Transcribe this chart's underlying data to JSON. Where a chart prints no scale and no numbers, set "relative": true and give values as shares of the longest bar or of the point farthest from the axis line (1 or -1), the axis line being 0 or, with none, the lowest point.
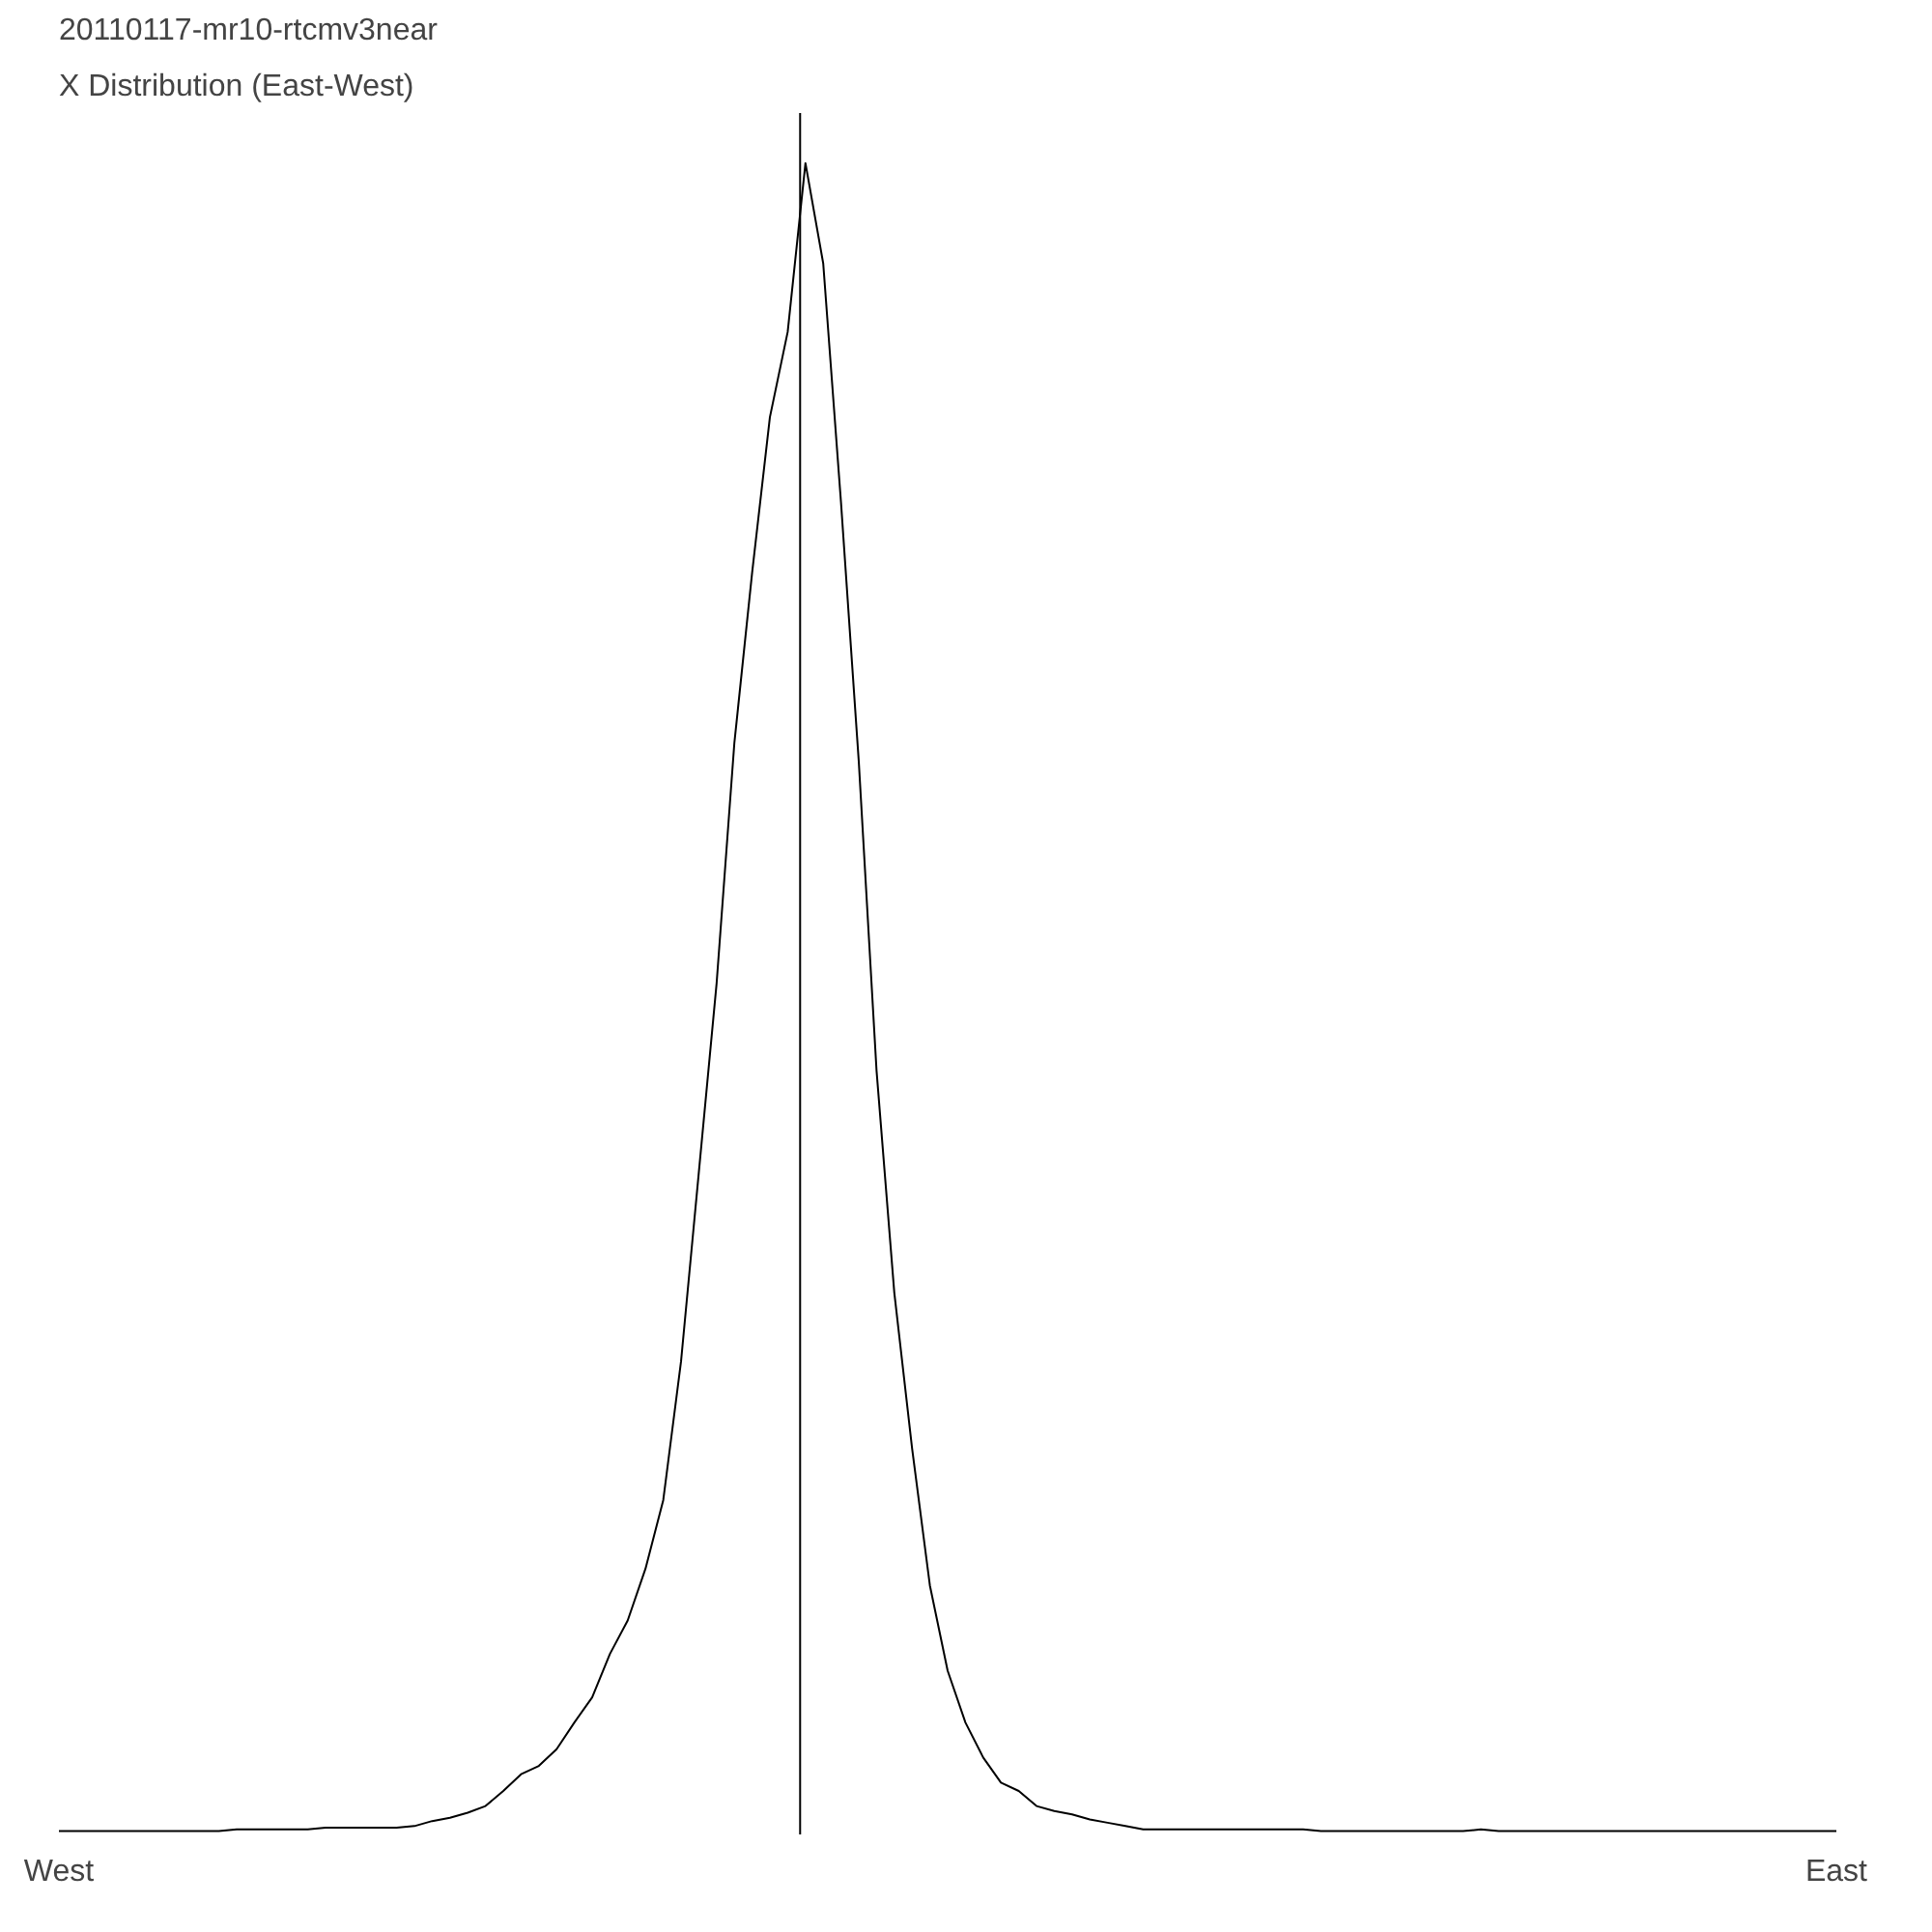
{
  "chart_data": {
    "type": "line",
    "title": "20110117-mr10-rtcmv3near",
    "subtitle": "X Distribution (East-West)",
    "relative": true,
    "categories": [
      "West",
      null,
      null,
      null,
      null,
      null,
      null,
      null,
      null,
      null,
      null,
      null,
      null,
      null,
      null,
      null,
      null,
      null,
      null,
      null,
      null,
      null,
      null,
      null,
      null,
      null,
      null,
      null,
      null,
      null,
      null,
      null,
      null,
      null,
      null,
      null,
      null,
      null,
      null,
      null,
      null,
      null,
      null,
      null,
      null,
      null,
      null,
      null,
      null,
      null,
      null,
      null,
      null,
      null,
      null,
      null,
      null,
      null,
      null,
      null,
      null,
      null,
      null,
      null,
      null,
      null,
      null,
      null,
      null,
      null,
      null,
      null,
      null,
      null,
      null,
      null,
      null,
      null,
      null,
      null,
      null,
      null,
      null,
      null,
      null,
      null,
      null,
      null,
      null,
      null,
      null,
      null,
      null,
      null,
      null,
      null,
      null,
      null,
      null,
      null,
      "East"
    ],
    "series": [
      {
        "color": "#000000",
        "values": [
          0.002,
          0.002,
          0.002,
          0.002,
          0.002,
          0.002,
          0.002,
          0.002,
          0.002,
          0.002,
          0.003,
          0.003,
          0.003,
          0.003,
          0.003,
          0.004,
          0.004,
          0.004,
          0.004,
          0.004,
          0.005,
          0.008,
          0.01,
          0.013,
          0.017,
          0.026,
          0.036,
          0.041,
          0.051,
          0.067,
          0.082,
          0.108,
          0.128,
          0.159,
          0.2,
          0.283,
          0.396,
          0.509,
          0.653,
          0.755,
          0.848,
          0.899,
          1,
          0.94,
          0.797,
          0.642,
          0.457,
          0.324,
          0.231,
          0.149,
          0.098,
          0.067,
          0.046,
          0.031,
          0.026,
          0.017,
          0.014,
          0.012,
          0.009,
          0.007,
          0.005,
          0.003,
          0.003,
          0.003,
          0.003,
          0.003,
          0.003,
          0.003,
          0.003,
          0.003,
          0.003,
          0.002,
          0.002,
          0.002,
          0.002,
          0.002,
          0.002,
          0.002,
          0.002,
          0.002,
          0.003,
          0.002,
          0.002,
          0.002,
          0.002,
          0.002,
          0.002,
          0.002,
          0.002,
          0.002,
          0.002,
          0.002,
          0.002,
          0.002,
          0.002,
          0.002,
          0.002,
          0.002,
          0.002,
          0.002,
          0.002
        ]
      }
    ],
    "grid": false,
    "marker": "none",
    "line_style": "solid"
  }
}
